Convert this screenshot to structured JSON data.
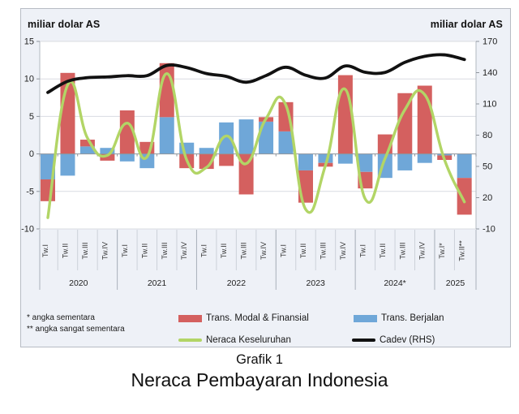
{
  "figure": {
    "left_axis_title": "miliar dolar AS",
    "right_axis_title": "miliar dolar AS",
    "footnote1": "* angka sementara",
    "footnote2": "** angka sangat sementara",
    "caption_line1": "Grafik 1",
    "caption_line2": "Neraca Pembayaran Indonesia"
  },
  "legend": {
    "modal": {
      "label": "Trans. Modal & Finansial",
      "color": "#d4605f"
    },
    "berjalan": {
      "label": "Trans. Berjalan",
      "color": "#6fa7d8"
    },
    "keseluruhan": {
      "label": "Neraca Keseluruhan",
      "color": "#b2d566"
    },
    "cadev": {
      "label": "Cadev (RHS)",
      "color": "#111111"
    }
  },
  "chart_data": {
    "type": "combo-stacked-bar-and-line",
    "x_tick_labels": [
      "Tw.I",
      "Tw.II",
      "Tw.III",
      "Tw.IV",
      "Tw.I",
      "Tw.II",
      "Tw.III",
      "Tw.IV",
      "Tw.I",
      "Tw.II",
      "Tw.III",
      "Tw.IV",
      "Tw.I",
      "Tw.II",
      "Tw.III",
      "Tw.IV",
      "Tw.I",
      "Tw.II",
      "Tw.III",
      "Tw.IV",
      "Tw.I*",
      "Tw.II**"
    ],
    "year_groups": [
      {
        "label": "2020",
        "count": 4
      },
      {
        "label": "2021",
        "count": 4
      },
      {
        "label": "2022",
        "count": 4
      },
      {
        "label": "2023",
        "count": 4
      },
      {
        "label": "2024*",
        "count": 4
      },
      {
        "label": "2025",
        "count": 2
      }
    ],
    "left_axis": {
      "title": "miliar dolar AS",
      "ticks": [
        15,
        10,
        5,
        0,
        -5,
        -10
      ],
      "range": [
        -10,
        15
      ]
    },
    "right_axis": {
      "title": "miliar dolar AS",
      "ticks": [
        170,
        140,
        110,
        80,
        50,
        20,
        -10
      ],
      "range": [
        -10,
        170
      ]
    },
    "grid": true,
    "legend_position": "bottom",
    "series": [
      {
        "name": "Trans. Berjalan",
        "type": "bar-stacked",
        "axis": "left",
        "color": "#6fa7d8",
        "values": [
          -3.4,
          -2.9,
          1.0,
          0.8,
          -1.0,
          -1.9,
          4.9,
          1.5,
          0.8,
          4.2,
          4.6,
          4.3,
          3.0,
          -2.2,
          -1.2,
          -1.3,
          -2.4,
          -3.2,
          -2.2,
          -1.2,
          -0.2,
          -3.2
        ]
      },
      {
        "name": "Trans. Modal & Finansial",
        "type": "bar-stacked",
        "axis": "left",
        "color": "#d4605f",
        "values": [
          -2.9,
          10.8,
          0.9,
          -0.9,
          5.8,
          1.6,
          7.2,
          -1.9,
          -2.0,
          -1.6,
          -5.4,
          0.6,
          3.9,
          -4.3,
          -0.5,
          10.5,
          -2.2,
          2.6,
          8.1,
          9.1,
          -0.6,
          -4.9
        ]
      },
      {
        "name": "Neraca Keseluruhan",
        "type": "line-smooth",
        "axis": "left",
        "color": "#b2d566",
        "values": [
          -8.5,
          9.2,
          2.1,
          -0.2,
          4.1,
          -0.4,
          10.7,
          -0.8,
          -1.8,
          2.4,
          -1.3,
          4.7,
          6.5,
          -7.4,
          -1.5,
          8.6,
          -6.0,
          -0.6,
          5.9,
          7.9,
          -0.8,
          -6.4
        ]
      },
      {
        "name": "Cadev (RHS)",
        "type": "line-smooth",
        "axis": "right",
        "color": "#111111",
        "values": [
          121.0,
          131.7,
          135.2,
          135.9,
          137.1,
          137.1,
          146.9,
          144.9,
          139.1,
          136.4,
          130.8,
          137.2,
          145.2,
          137.5,
          134.9,
          146.4,
          140.4,
          140.2,
          149.9,
          155.7,
          157.1,
          152.6
        ]
      }
    ],
    "colors": {
      "figure_bg": "#eef1f7",
      "plot_bg": "#ffffff",
      "gridline": "#d9dce2",
      "zero_axis": "#8f959d",
      "axis_line": "#b3b9c1",
      "quarter_separator": "#ccd1d9",
      "year_separator": "#aab1bb"
    }
  }
}
